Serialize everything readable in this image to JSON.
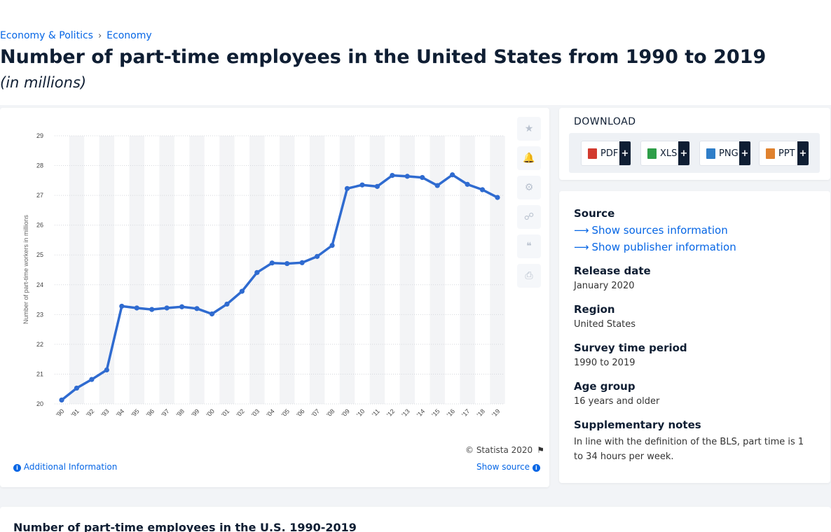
{
  "breadcrumb": {
    "items": [
      "Economy & Politics",
      "Economy"
    ],
    "separator": "›"
  },
  "page": {
    "title": "Number of part-time employees in the United States from 1990 to 2019",
    "subtitle": "(in millions)"
  },
  "chart_footer": {
    "copyright": "© Statista 2020",
    "additional_info": "Additional Information",
    "show_source": "Show source"
  },
  "download": {
    "title": "DOWNLOAD",
    "buttons": [
      {
        "label": "PDF",
        "color": "#d23a2f"
      },
      {
        "label": "XLS",
        "color": "#2e9e48"
      },
      {
        "label": "PNG",
        "color": "#2f7ec8"
      },
      {
        "label": "PPT",
        "color": "#e0822e"
      }
    ],
    "plus": "+"
  },
  "info": {
    "source_label": "Source",
    "show_sources": "Show sources information",
    "show_publisher": "Show publisher information",
    "release_label": "Release date",
    "release_value": "January 2020",
    "region_label": "Region",
    "region_value": "United States",
    "survey_label": "Survey time period",
    "survey_value": "1990 to 2019",
    "age_label": "Age group",
    "age_value": "16 years and older",
    "notes_label": "Supplementary notes",
    "notes_value": "In line with the definition of the BLS, part time is 1 to 34 hours per week."
  },
  "toolbar": [
    "star-icon",
    "bell-icon",
    "gear-icon",
    "share-icon",
    "quote-icon",
    "print-icon"
  ],
  "bottom": {
    "title": "Number of part-time employees in the U.S. 1990-2019"
  },
  "colors": {
    "line": "#2f6bd0",
    "accent": "#0666e5"
  },
  "chart_data": {
    "type": "line",
    "categories": [
      "'90",
      "'91",
      "'92",
      "'93",
      "'94",
      "'95",
      "'96",
      "'97",
      "'98",
      "'99",
      "'00",
      "'01",
      "'02",
      "'03",
      "'04",
      "'05",
      "'06",
      "'07",
      "'08",
      "'09",
      "'10",
      "'11",
      "'12",
      "'13",
      "'14",
      "'15",
      "'16",
      "'17",
      "'18",
      "'19"
    ],
    "series": [
      {
        "values": [
          20.13,
          20.53,
          20.82,
          21.14,
          23.28,
          23.22,
          23.17,
          23.22,
          23.26,
          23.2,
          23.02,
          23.35,
          23.78,
          24.41,
          24.73,
          24.71,
          24.74,
          24.95,
          25.32,
          27.23,
          27.35,
          27.3,
          27.67,
          27.64,
          27.6,
          27.33,
          27.69,
          27.37,
          27.19,
          26.93
        ]
      }
    ],
    "ylabel": "Number of part-time workers in millions",
    "yticks": [
      20,
      21,
      22,
      23,
      24,
      25,
      26,
      27,
      28,
      29
    ],
    "ylim": [
      20,
      29
    ],
    "grid": true
  }
}
